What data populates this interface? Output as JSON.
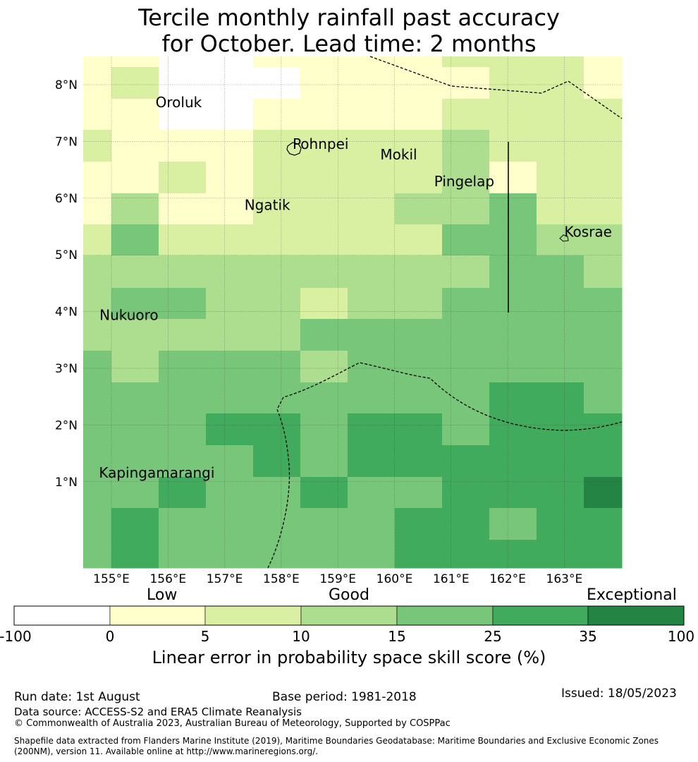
{
  "title_line1": "Tercile monthly rainfall past accuracy",
  "title_line2": "for October. Lead time: 2 months",
  "map": {
    "lon_ticks": [
      "155°E",
      "156°E",
      "157°E",
      "158°E",
      "159°E",
      "160°E",
      "161°E",
      "162°E",
      "163°E"
    ],
    "lat_ticks": [
      "8°N",
      "7°N",
      "6°N",
      "5°N",
      "4°N",
      "3°N",
      "2°N",
      "1°N"
    ],
    "places": [
      {
        "name": "Oroluk",
        "lon": 155.78,
        "lat": 7.6
      },
      {
        "name": "Pohnpei",
        "lon": 158.2,
        "lat": 6.87
      },
      {
        "name": "Mokil",
        "lon": 159.75,
        "lat": 6.68
      },
      {
        "name": "Pingelap",
        "lon": 160.7,
        "lat": 6.21
      },
      {
        "name": "Ngatik",
        "lon": 157.35,
        "lat": 5.79
      },
      {
        "name": "Kosrae",
        "lon": 163.0,
        "lat": 5.32
      },
      {
        "name": "Nukuoro",
        "lon": 154.79,
        "lat": 3.85
      },
      {
        "name": "Kapingamarangi",
        "lon": 154.78,
        "lat": 1.07
      }
    ]
  },
  "colorbar": {
    "categories": [
      "Low",
      "Good",
      "Exceptional"
    ],
    "ticks": [
      "-100",
      "0",
      "5",
      "10",
      "15",
      "25",
      "35",
      "100"
    ],
    "colors": [
      "#ffffff",
      "#ffffcc",
      "#d9f0a3",
      "#addd8e",
      "#78c679",
      "#41ab5d",
      "#238443"
    ],
    "label": "Linear error in probability space skill score (%)"
  },
  "footer": {
    "run_date": "Run date: 1st August",
    "base_period": "Base period: 1981-2018",
    "issued": "Issued: 18/05/2023",
    "data_source": "Data source: ACCESS-S2 and ERA5 Climate Reanalysis",
    "copyright": "© Commonwealth of Australia 2023, Australian Bureau of Meteorology, Supported by COSPPac",
    "shapefile": "Shapefile data extracted from Flanders Marine Institute (2019), Maritime Boundaries Geodatabase: Maritime Boundaries and Exclusive Economic Zones (200NM), version 11. Available online at http://www.marineregions.org/."
  }
}
